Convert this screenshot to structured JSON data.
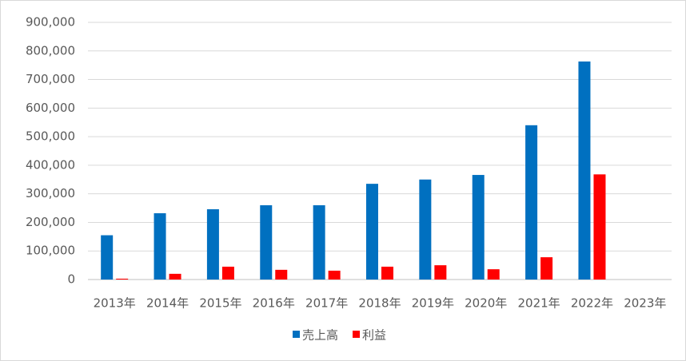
{
  "chart_data": {
    "type": "bar",
    "categories": [
      "2013年",
      "2014年",
      "2015年",
      "2016年",
      "2017年",
      "2018年",
      "2019年",
      "2020年",
      "2021年",
      "2022年",
      "2023年"
    ],
    "series": [
      {
        "name": "売上高",
        "color": "#0070c0",
        "values": [
          155000,
          232000,
          246000,
          260000,
          260000,
          335000,
          350000,
          366000,
          540000,
          763000,
          null
        ]
      },
      {
        "name": "利益",
        "color": "#ff0000",
        "values": [
          3000,
          20000,
          45000,
          34000,
          31000,
          45000,
          50000,
          36000,
          78000,
          368000,
          null
        ]
      }
    ],
    "ylim": [
      0,
      900000
    ],
    "yticks": [
      0,
      {
        "value": 100000,
        "label": "100,000"
      },
      {
        "value": 200000,
        "label": "200,000"
      },
      {
        "value": 300000,
        "label": "300,000"
      },
      {
        "value": 400000,
        "label": "400,000"
      },
      {
        "value": 500000,
        "label": "500,000"
      },
      {
        "value": 600000,
        "label": "600,000"
      },
      {
        "value": 700000,
        "label": "700,000"
      },
      {
        "value": 800000,
        "label": "800,000"
      },
      {
        "value": 900000,
        "label": "900,000"
      }
    ],
    "grid": true,
    "legend": "bottom"
  }
}
